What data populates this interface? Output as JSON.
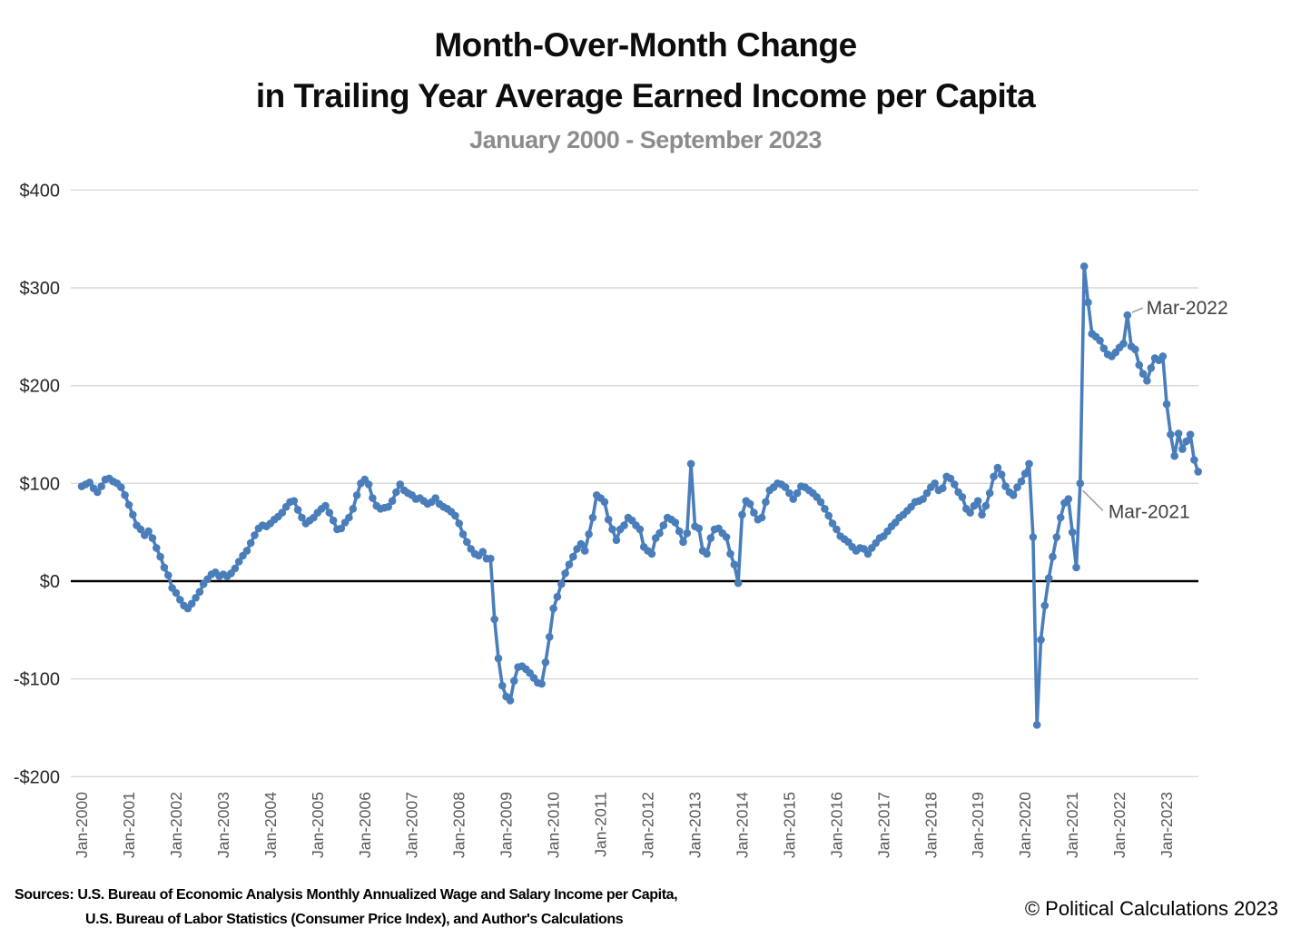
{
  "title": {
    "line1": "Month-Over-Month Change",
    "line2": "in Trailing Year Average Earned Income per Capita"
  },
  "subtitle": "January 2000 - September 2023",
  "footer": {
    "sources_line1": "Sources: U.S. Bureau of Economic Analysis Monthly Annualized Wage and Salary Income per Capita,",
    "sources_line2": "U.S. Bureau of Labor Statistics (Consumer Price Index), and Author's Calculations",
    "copyright": "© Political Calculations 2023"
  },
  "chart_data": {
    "type": "line",
    "title": "Month-Over-Month Change in Trailing Year Average Earned Income per Capita",
    "period": "January 2000 - September 2023",
    "x_monthly_start": "2000-01",
    "x_monthly_end": "2023-09",
    "x_tick_labels": [
      "Jan-2000",
      "Jan-2001",
      "Jan-2002",
      "Jan-2003",
      "Jan-2004",
      "Jan-2005",
      "Jan-2006",
      "Jan-2007",
      "Jan-2008",
      "Jan-2009",
      "Jan-2010",
      "Jan-2011",
      "Jan-2012",
      "Jan-2013",
      "Jan-2014",
      "Jan-2015",
      "Jan-2016",
      "Jan-2017",
      "Jan-2018",
      "Jan-2019",
      "Jan-2020",
      "Jan-2021",
      "Jan-2022",
      "Jan-2023"
    ],
    "y_tick_labels": [
      "$400",
      "$300",
      "$200",
      "$100",
      "$0",
      "-$100",
      "-$200"
    ],
    "y_tick_values": [
      400,
      300,
      200,
      100,
      0,
      -100,
      -200
    ],
    "ylim": [
      -200,
      400
    ],
    "grid": true,
    "zero_line": true,
    "legend": "none",
    "line_color": "#4a7ebb",
    "grid_color": "#d9d9d9",
    "zero_line_color": "#000000",
    "axis_label_color": "#595959",
    "y_label_color": "#262626",
    "annotation_color": "#404040",
    "leader_color": "#a0a0a0",
    "series": [
      {
        "name": "MoM change in trailing year average earned income per capita (USD)",
        "color": "#4a7ebb",
        "values": [
          97,
          99,
          101,
          95,
          91,
          97,
          104,
          105,
          102,
          100,
          96,
          88,
          78,
          68,
          57,
          53,
          47,
          51,
          44,
          34,
          25,
          14,
          6,
          -7,
          -12,
          -19,
          -25,
          -28,
          -23,
          -17,
          -11,
          -3,
          2,
          7,
          9,
          5,
          7,
          5,
          8,
          13,
          20,
          26,
          31,
          39,
          47,
          54,
          57,
          56,
          59,
          63,
          66,
          70,
          76,
          81,
          82,
          73,
          65,
          59,
          62,
          65,
          70,
          74,
          77,
          70,
          62,
          53,
          54,
          60,
          65,
          74,
          88,
          100,
          104,
          99,
          85,
          77,
          74,
          75,
          76,
          82,
          91,
          99,
          93,
          90,
          88,
          84,
          85,
          82,
          79,
          81,
          85,
          79,
          76,
          74,
          71,
          67,
          59,
          48,
          40,
          33,
          28,
          26,
          30,
          23,
          23,
          -39,
          -79,
          -107,
          -118,
          -122,
          -102,
          -88,
          -87,
          -90,
          -94,
          -99,
          -104,
          -105,
          -83,
          -57,
          -28,
          -16,
          -3,
          8,
          17,
          25,
          33,
          38,
          31,
          48,
          65,
          88,
          85,
          81,
          63,
          53,
          42,
          53,
          57,
          65,
          62,
          57,
          53,
          35,
          31,
          28,
          44,
          49,
          57,
          65,
          63,
          60,
          51,
          40,
          49,
          120,
          56,
          54,
          31,
          28,
          44,
          53,
          54,
          49,
          45,
          28,
          17,
          -2,
          68,
          82,
          79,
          70,
          63,
          65,
          81,
          93,
          96,
          100,
          99,
          96,
          90,
          84,
          90,
          97,
          96,
          93,
          90,
          86,
          81,
          74,
          67,
          59,
          53,
          46,
          43,
          40,
          35,
          31,
          34,
          33,
          28,
          34,
          39,
          44,
          46,
          51,
          56,
          60,
          65,
          68,
          72,
          76,
          81,
          82,
          84,
          90,
          96,
          100,
          93,
          95,
          107,
          105,
          99,
          91,
          86,
          74,
          70,
          77,
          82,
          68,
          77,
          90,
          107,
          116,
          109,
          97,
          91,
          88,
          96,
          102,
          110,
          120,
          45,
          -147,
          -60,
          -25,
          3,
          25,
          45,
          65,
          80,
          84,
          50,
          14,
          100,
          322,
          285,
          253,
          250,
          246,
          238,
          232,
          230,
          234,
          239,
          243,
          272,
          240,
          237,
          221,
          212,
          205,
          218,
          228,
          226,
          230,
          181,
          150,
          128,
          151,
          135,
          143,
          150,
          124,
          112
        ]
      }
    ],
    "annotations": [
      {
        "label": "Mar-2022",
        "month_index": 266,
        "value": 272,
        "side": "upper-right"
      },
      {
        "label": "Mar-2021",
        "month_index": 254,
        "value": 100,
        "side": "lower-right"
      }
    ]
  }
}
